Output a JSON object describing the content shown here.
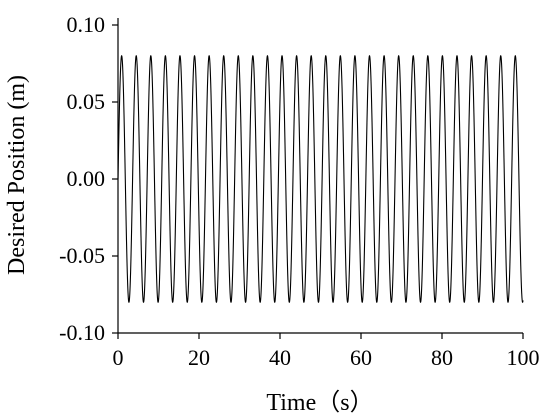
{
  "chart_data": {
    "type": "line",
    "title": "",
    "xlabel": "Time（s）",
    "ylabel": "Desired Position (m)",
    "xlim": [
      0,
      100
    ],
    "ylim": [
      -0.1,
      0.1
    ],
    "x_ticks": [
      0,
      20,
      40,
      60,
      80,
      100
    ],
    "x_tick_labels": [
      "0",
      "20",
      "40",
      "60",
      "80",
      "100"
    ],
    "y_ticks": [
      -0.1,
      -0.05,
      0.0,
      0.05,
      0.1
    ],
    "y_tick_labels": [
      "-0.10",
      "-0.05",
      "0.00",
      "0.05",
      "0.10"
    ],
    "grid": false,
    "legend": "none",
    "series": [
      {
        "function": "sine",
        "amplitude": 0.08,
        "period": 3.6,
        "phase": 0,
        "x_start": 0,
        "x_end": 100,
        "color": "#000000"
      }
    ]
  }
}
